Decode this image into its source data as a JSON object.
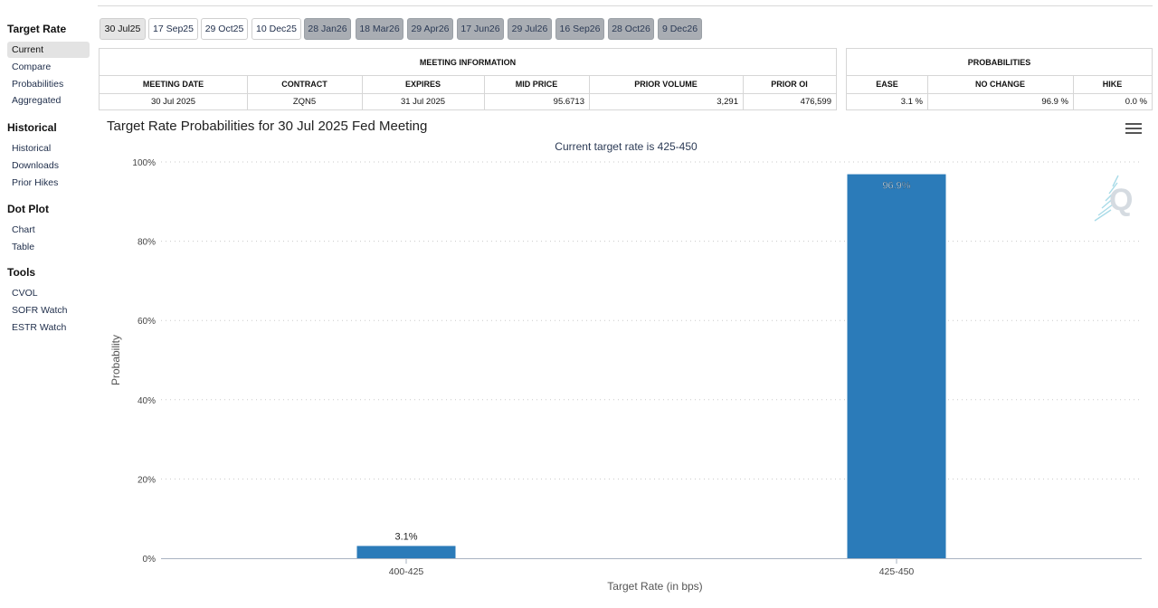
{
  "sidebar": {
    "sections": [
      {
        "title": "Target Rate",
        "items": [
          "Current",
          "Compare",
          "Probabilities",
          "Aggregated"
        ],
        "active": 0
      },
      {
        "title": "Historical",
        "items": [
          "Historical",
          "Downloads",
          "Prior Hikes"
        ],
        "active": -1
      },
      {
        "title": "Dot Plot",
        "items": [
          "Chart",
          "Table"
        ],
        "active": -1
      },
      {
        "title": "Tools",
        "items": [
          "CVOL",
          "SOFR Watch",
          "ESTR Watch"
        ],
        "active": -1
      }
    ]
  },
  "tabs": [
    {
      "label": "30 Jul25",
      "state": "current"
    },
    {
      "label": "17 Sep25",
      "state": "normal"
    },
    {
      "label": "29 Oct25",
      "state": "normal"
    },
    {
      "label": "10 Dec25",
      "state": "normal"
    },
    {
      "label": "28 Jan26",
      "state": "future"
    },
    {
      "label": "18 Mar26",
      "state": "future"
    },
    {
      "label": "29 Apr26",
      "state": "future"
    },
    {
      "label": "17 Jun26",
      "state": "future"
    },
    {
      "label": "29 Jul26",
      "state": "future"
    },
    {
      "label": "16 Sep26",
      "state": "future"
    },
    {
      "label": "28 Oct26",
      "state": "future"
    },
    {
      "label": "9 Dec26",
      "state": "future"
    }
  ],
  "meeting_table": {
    "title": "MEETING INFORMATION",
    "headers": [
      "MEETING DATE",
      "CONTRACT",
      "EXPIRES",
      "MID PRICE",
      "PRIOR VOLUME",
      "PRIOR OI"
    ],
    "row": [
      "30 Jul 2025",
      "ZQN5",
      "31 Jul 2025",
      "95.6713",
      "3,291",
      "476,599"
    ]
  },
  "prob_table": {
    "title": "PROBABILITIES",
    "headers": [
      "EASE",
      "NO CHANGE",
      "HIKE"
    ],
    "row": [
      "3.1 %",
      "96.9 %",
      "0.0 %"
    ]
  },
  "chart": {
    "menu_icon": "hamburger-menu-icon",
    "logo_icon": "q-logo-icon"
  },
  "chart_data": {
    "type": "bar",
    "title": "Target Rate Probabilities for 30 Jul 2025 Fed Meeting",
    "subtitle": "Current target rate is 425-450",
    "xlabel": "Target Rate (in bps)",
    "ylabel": "Probability",
    "categories": [
      "400-425",
      "425-450"
    ],
    "values": [
      3.1,
      96.9
    ],
    "data_labels": [
      "3.1%",
      "96.9%"
    ],
    "ylim": [
      0,
      100
    ],
    "yticks": [
      0,
      20,
      40,
      60,
      80,
      100
    ],
    "ytick_labels": [
      "0%",
      "20%",
      "40%",
      "60%",
      "80%",
      "100%"
    ],
    "bar_color": "#2b7bb9",
    "grid": "dotted horizontal"
  }
}
